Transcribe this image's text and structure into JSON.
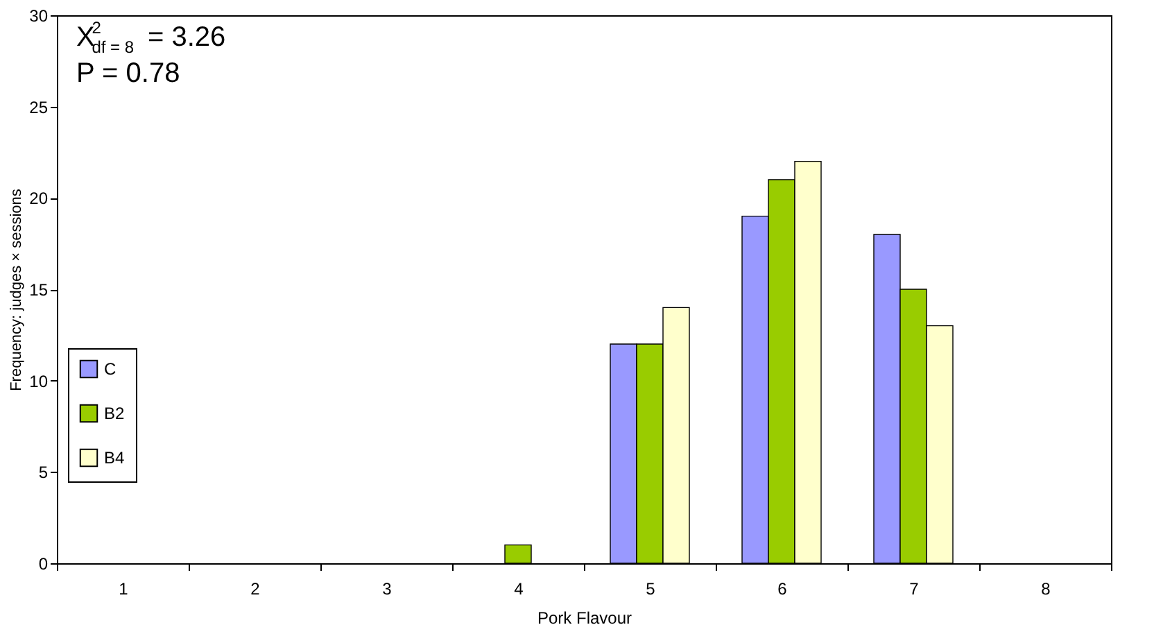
{
  "chart_data": {
    "type": "bar",
    "xlabel": "Pork Flavour",
    "ylabel": "Frequency: judges × sessions",
    "categories": [
      "1",
      "2",
      "3",
      "4",
      "5",
      "6",
      "7",
      "8"
    ],
    "series": [
      {
        "name": "C",
        "color": "#9999ff",
        "values": [
          0,
          0,
          0,
          0,
          12,
          19,
          18,
          0
        ]
      },
      {
        "name": "B2",
        "color": "#99cc00",
        "values": [
          0,
          0,
          0,
          1,
          12,
          21,
          15,
          0
        ]
      },
      {
        "name": "B4",
        "color": "#ffffcc",
        "values": [
          0,
          0,
          0,
          0,
          14,
          22,
          13,
          0
        ]
      }
    ],
    "ylim": [
      0,
      30
    ],
    "yticks": [
      0,
      5,
      10,
      15,
      20,
      25,
      30
    ],
    "grid": false,
    "legend": "left",
    "annotations": [
      "X$^{2}$$_{df = 8}$ = 3.26",
      "P = 0.78"
    ]
  }
}
